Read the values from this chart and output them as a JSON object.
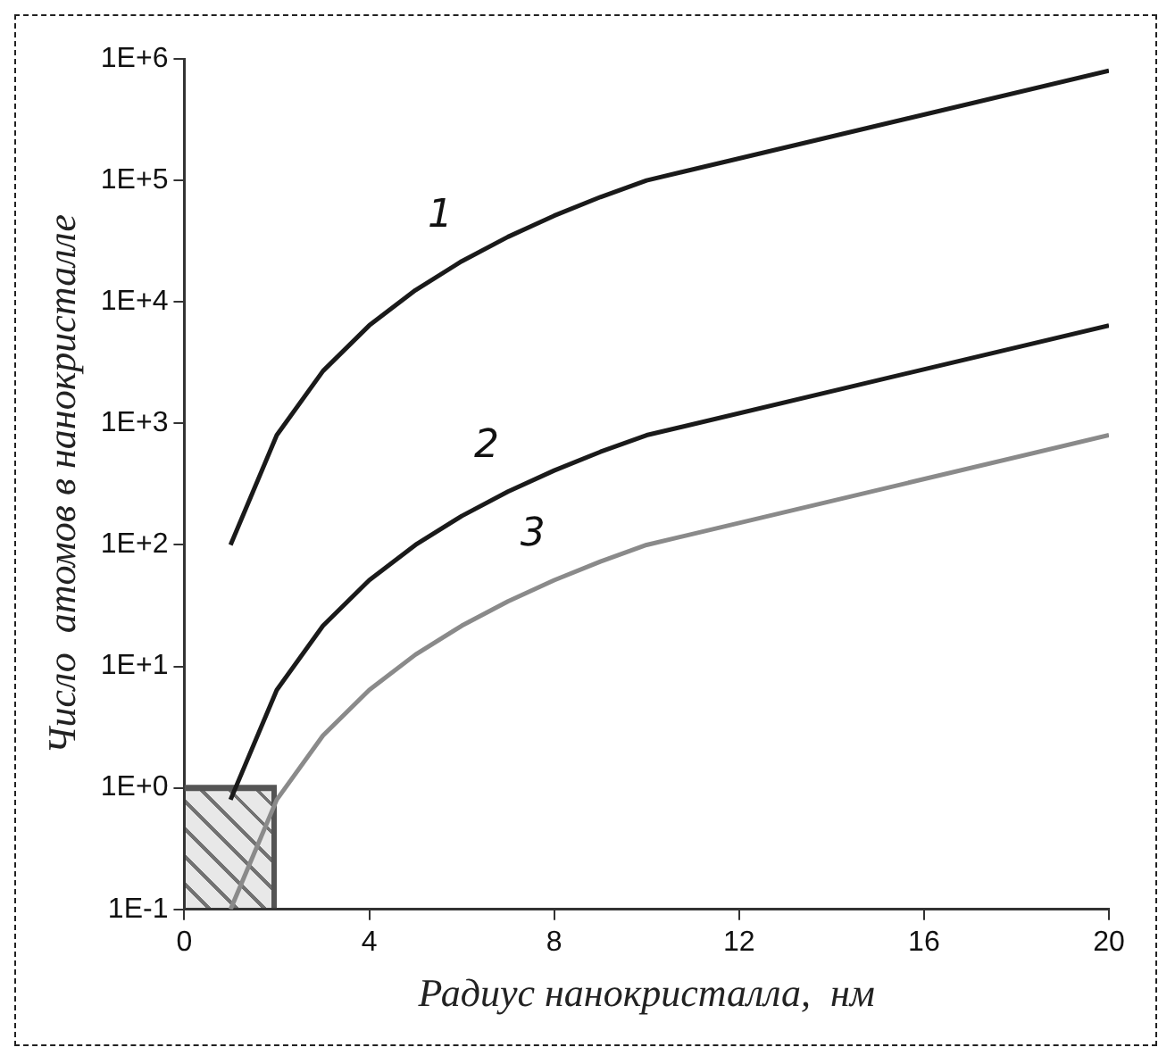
{
  "chart_data": {
    "type": "line",
    "xlabel": "Радиус нанокристалла,  нм",
    "ylabel": "Число  атомов в нанокристалле",
    "x": [
      1,
      2,
      3,
      4,
      5,
      6,
      7,
      8,
      9,
      10,
      20
    ],
    "log": "y",
    "marker": "none",
    "line_style": "solid",
    "grid": false,
    "legend": false,
    "series": [
      {
        "name": "1",
        "color": "#1a1a1a",
        "values": [
          100,
          800,
          2700,
          6400,
          12500,
          21600,
          34300,
          51200,
          72900,
          100000,
          800000
        ]
      },
      {
        "name": "2",
        "color": "#1a1a1a",
        "values": [
          0.8,
          6.4,
          21.6,
          51.2,
          100,
          172.8,
          274.4,
          409.6,
          583.2,
          800,
          6400
        ]
      },
      {
        "name": "3",
        "color": "#8a8a8a",
        "values": [
          0.1,
          0.8,
          2.7,
          6.4,
          12.5,
          21.6,
          34.3,
          51.2,
          72.9,
          100,
          800
        ]
      },
      {
        "type": "area",
        "color": "#555555",
        "x": [
          0,
          2
        ],
        "values": [
          1,
          1
        ]
      }
    ],
    "xlim": [
      0,
      20
    ],
    "xticks": [
      0,
      4,
      8,
      12,
      16,
      20
    ],
    "ylim": [
      0.1,
      1000000
    ],
    "yticks": [
      {
        "value": 0.1,
        "label": "1E-1"
      },
      {
        "value": 1,
        "label": "1E+0"
      },
      {
        "value": 10,
        "label": "1E+1"
      },
      {
        "value": 100,
        "label": "1E+2"
      },
      {
        "value": 1000,
        "label": "1E+3"
      },
      {
        "value": 10000,
        "label": "1E+4"
      },
      {
        "value": 100000,
        "label": "1E+5"
      },
      {
        "value": 1000000,
        "label": "1E+6"
      }
    ]
  }
}
